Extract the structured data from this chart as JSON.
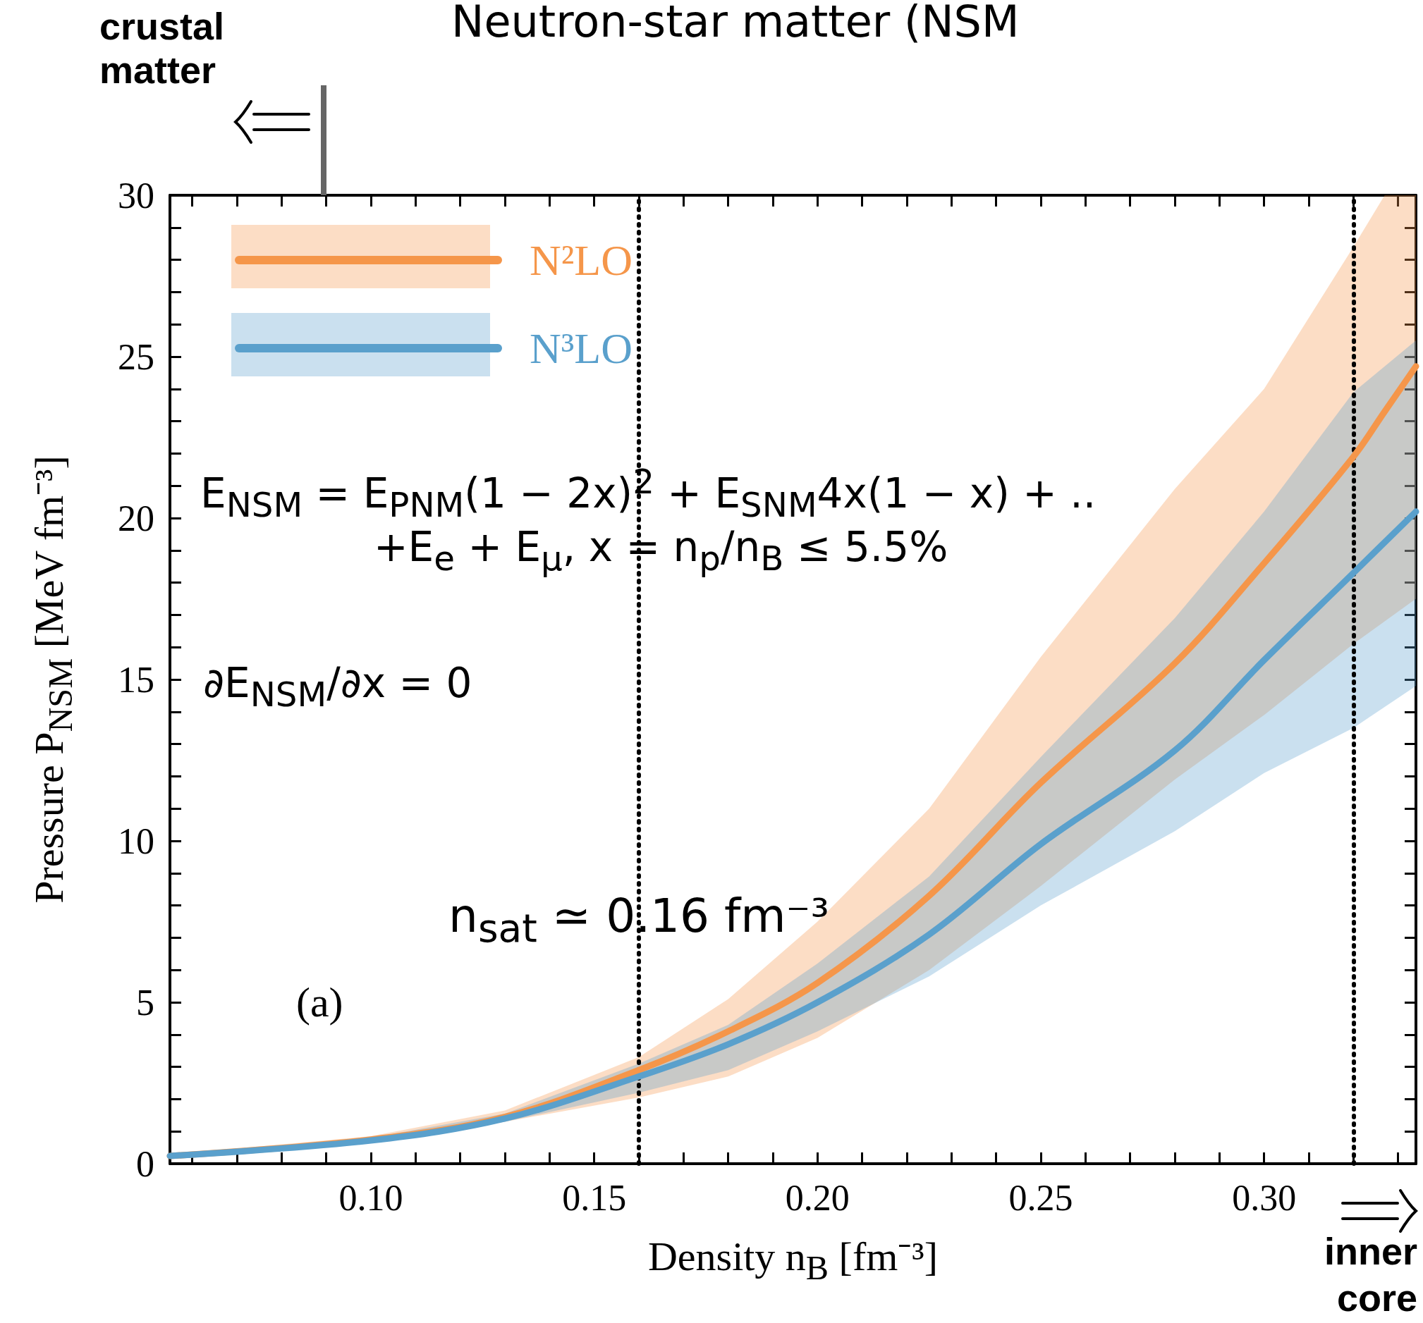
{
  "chart_data": {
    "type": "line",
    "title": "Neutron-star matter (NSM",
    "xlabel": "Density n$_{B}$ [fm⁻³]",
    "ylabel": "Pressure P$_{NSM}$ [MeV fm⁻³]",
    "xlim": [
      0.055,
      0.334
    ],
    "ylim": [
      0,
      30
    ],
    "xticks": [
      {
        "value": 0.06,
        "label": null
      },
      {
        "value": 0.07,
        "label": null
      },
      {
        "value": 0.08,
        "label": null
      },
      {
        "value": 0.09,
        "label": null
      },
      {
        "value": 0.1,
        "label": "0.10"
      },
      {
        "value": 0.11,
        "label": null
      },
      {
        "value": 0.12,
        "label": null
      },
      {
        "value": 0.13,
        "label": null
      },
      {
        "value": 0.14,
        "label": null
      },
      {
        "value": 0.15,
        "label": "0.15"
      },
      {
        "value": 0.16,
        "label": null
      },
      {
        "value": 0.17,
        "label": null
      },
      {
        "value": 0.18,
        "label": null
      },
      {
        "value": 0.19,
        "label": null
      },
      {
        "value": 0.2,
        "label": "0.20"
      },
      {
        "value": 0.21,
        "label": null
      },
      {
        "value": 0.22,
        "label": null
      },
      {
        "value": 0.23,
        "label": null
      },
      {
        "value": 0.24,
        "label": null
      },
      {
        "value": 0.25,
        "label": "0.25"
      },
      {
        "value": 0.26,
        "label": null
      },
      {
        "value": 0.27,
        "label": null
      },
      {
        "value": 0.28,
        "label": null
      },
      {
        "value": 0.29,
        "label": null
      },
      {
        "value": 0.3,
        "label": "0.30"
      },
      {
        "value": 0.31,
        "label": null
      },
      {
        "value": 0.32,
        "label": null
      },
      {
        "value": 0.33,
        "label": null
      }
    ],
    "yticks": [
      0,
      {
        "value": 1,
        "label": null
      },
      {
        "value": 2,
        "label": null
      },
      {
        "value": 3,
        "label": null
      },
      {
        "value": 4,
        "label": null
      },
      5,
      {
        "value": 6,
        "label": null
      },
      {
        "value": 7,
        "label": null
      },
      {
        "value": 8,
        "label": null
      },
      {
        "value": 9,
        "label": null
      },
      10,
      {
        "value": 11,
        "label": null
      },
      {
        "value": 12,
        "label": null
      },
      {
        "value": 13,
        "label": null
      },
      {
        "value": 14,
        "label": null
      },
      15,
      {
        "value": 16,
        "label": null
      },
      {
        "value": 17,
        "label": null
      },
      {
        "value": 18,
        "label": null
      },
      {
        "value": 19,
        "label": null
      },
      20,
      {
        "value": 21,
        "label": null
      },
      {
        "value": 22,
        "label": null
      },
      {
        "value": 23,
        "label": null
      },
      {
        "value": 24,
        "label": null
      },
      25,
      {
        "value": 26,
        "label": null
      },
      {
        "value": 27,
        "label": null
      },
      {
        "value": 28,
        "label": null
      },
      {
        "value": 29,
        "label": null
      },
      30
    ],
    "series": [
      {
        "name": "N²LO",
        "color": "#f5964a",
        "x": [
          0.055,
          0.1,
          0.13,
          0.16,
          0.18,
          0.2,
          0.225,
          0.25,
          0.28,
          0.3,
          0.32,
          0.327,
          0.334
        ],
        "values": [
          0.24,
          0.75,
          1.45,
          2.9,
          4.1,
          5.6,
          8.3,
          11.8,
          15.5,
          18.6,
          21.9,
          23.3,
          24.7
        ],
        "lower": [
          0.2,
          0.65,
          1.3,
          2.05,
          2.7,
          3.9,
          6.0,
          8.6,
          11.9,
          13.9,
          16.1,
          16.8,
          17.5
        ],
        "upper": [
          0.28,
          0.85,
          1.65,
          3.3,
          5.1,
          7.5,
          11.0,
          15.7,
          20.9,
          24.0,
          28.4,
          30,
          30
        ]
      },
      {
        "name": "N³LO",
        "color": "#5aa0cc",
        "x": [
          0.055,
          0.1,
          0.13,
          0.16,
          0.18,
          0.2,
          0.225,
          0.25,
          0.28,
          0.3,
          0.32,
          0.334
        ],
        "values": [
          0.24,
          0.72,
          1.4,
          2.7,
          3.7,
          5.0,
          7.1,
          9.9,
          12.8,
          15.6,
          18.3,
          20.2
        ],
        "lower": [
          0.2,
          0.65,
          1.3,
          2.2,
          2.9,
          4.1,
          5.8,
          8.0,
          10.3,
          12.1,
          13.5,
          14.8
        ],
        "upper": [
          0.28,
          0.8,
          1.55,
          3.1,
          4.3,
          6.2,
          8.9,
          12.6,
          16.9,
          20.2,
          23.9,
          25.5
        ]
      }
    ],
    "ref_lines": [
      {
        "axis": "x",
        "value": 0.16,
        "line_style": "dotted",
        "color": "#000000"
      },
      {
        "axis": "x",
        "value": 0.32,
        "line_style": "dotted",
        "color": "#000000"
      }
    ],
    "annotations": [
      "crustal matter",
      "inner core",
      "(a)",
      "E$_{NSM}$ = E$_{PNM}$(1 − 2x)$^{2}$ + E$_{SNM}$4x(1 − x) + ..",
      "+E$_{e}$ + E$_{μ}$, x = n$_{p}$/n$_{B}$ ≤ 5.5%",
      "∂E$_{NSM}$/∂x = 0",
      {
        "text": "n$_{sat}$ ≃ 0.16 fm⁻³",
        "x": 0.16,
        "y": 6.6
      }
    ],
    "legend": "top left",
    "grid": false,
    "marker": "none",
    "line_style": "solid"
  }
}
